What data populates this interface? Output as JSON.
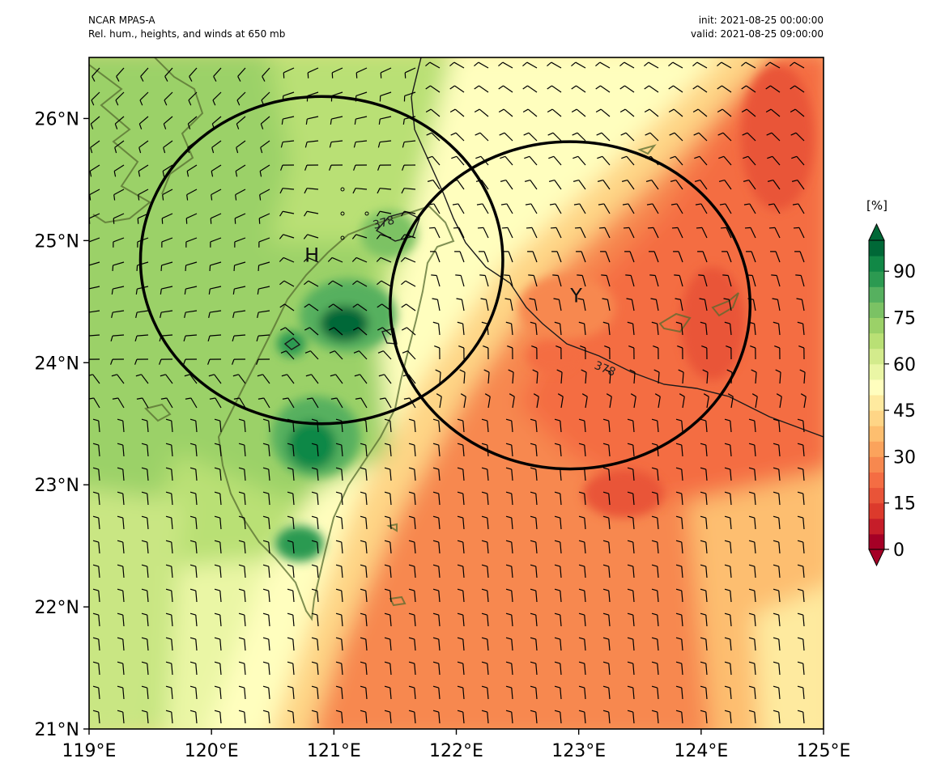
{
  "header": {
    "model": "NCAR MPAS-A",
    "description": "Rel. hum., heights, and winds at 650 mb",
    "init": "init: 2021-08-25 00:00:00",
    "valid": "valid: 2021-08-25 09:00:00"
  },
  "axes": {
    "lon_ticks": [
      "119°E",
      "120°E",
      "121°E",
      "122°E",
      "123°E",
      "124°E",
      "125°E"
    ],
    "lat_ticks": [
      "21°N",
      "22°N",
      "23°N",
      "24°N",
      "25°N",
      "26°N"
    ]
  },
  "extent": {
    "lon": [
      119,
      125
    ],
    "lat": [
      21,
      26.5
    ]
  },
  "colorbar": {
    "unit": "[%]",
    "labels": [
      "0",
      "15",
      "30",
      "45",
      "60",
      "75",
      "90"
    ],
    "colors": [
      "#a50026",
      "#c61d29",
      "#dc3a2c",
      "#e95438",
      "#f46d43",
      "#f7884f",
      "#fba35c",
      "#fdbe6f",
      "#fed586",
      "#feea9f",
      "#fffebe",
      "#eaf6a5",
      "#d3eb8c",
      "#b9e075",
      "#9bd168",
      "#7bc264",
      "#56b05f",
      "#2c9a51",
      "#118846",
      "#006837"
    ]
  },
  "symbols": {
    "high": {
      "label": "H",
      "lon": 120.82,
      "lat": 24.88
    },
    "typhoon": {
      "label": "Y",
      "lon": 122.98,
      "lat": 24.55
    }
  },
  "contour_label": "378",
  "circles": [
    {
      "lon": 120.9,
      "lat": 24.84,
      "r_lon": 1.48,
      "r_lat": 1.34
    },
    {
      "lon": 122.93,
      "lat": 24.47,
      "r_lon": 1.47,
      "r_lat": 1.34
    }
  ]
}
